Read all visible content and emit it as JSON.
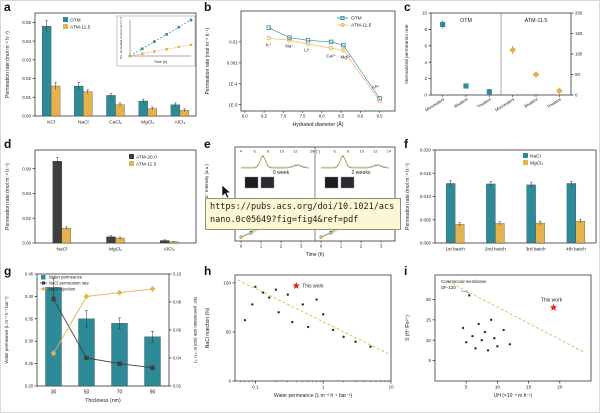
{
  "colors": {
    "teal": "#2d8a99",
    "yellow": "#e3b34f",
    "dark": "#3f3f3f",
    "red": "#d82a1a",
    "dashline": "#d6c567",
    "black": "#1a1a1a"
  },
  "tooltip": {
    "url": "https://pubs.acs.org/doi/10.1021/acsnano.0c05649?fig=fig4&ref=pdf"
  },
  "chart_data": [
    {
      "panel": "a",
      "type": "grouped-bar",
      "ylabel": "Permeation rate (mol m⁻² h⁻¹)",
      "categories": [
        "KCl",
        "NaCl",
        "CaCl₂",
        "MgCl₂",
        "AlCl₃"
      ],
      "series": [
        {
          "name": "OTM",
          "color": "teal",
          "values": [
            0.048,
            0.016,
            0.011,
            0.008,
            0.006
          ],
          "errors": [
            0.003,
            0.002,
            0.001,
            0.001,
            0.001
          ]
        },
        {
          "name": "ATM-11.5",
          "color": "yellow",
          "values": [
            0.016,
            0.013,
            0.006,
            0.004,
            0.003
          ],
          "errors": [
            0.002,
            0.001,
            0.001,
            0.0008,
            0.0008
          ]
        }
      ],
      "ylim": [
        0,
        0.055
      ],
      "yticks": [
        0,
        0.01,
        0.02,
        0.03,
        0.04,
        0.05
      ],
      "ytick_decimals": 2,
      "inset": {
        "xlabel": "Time (h)",
        "ylabel": "Na⁺ permeated amount (mol m⁻²)",
        "xmax": 5,
        "ymax": 0.08,
        "series": [
          {
            "name": "OTM",
            "color": "teal",
            "x": [
              0,
              1,
              2,
              3,
              4,
              5
            ],
            "y": [
              0,
              0.016,
              0.032,
              0.048,
              0.064,
              0.08
            ]
          },
          {
            "name": "ATM-11.5",
            "color": "yellow",
            "x": [
              0,
              1,
              2,
              3,
              4,
              5
            ],
            "y": [
              0,
              0.005,
              0.01,
              0.015,
              0.02,
              0.025
            ]
          }
        ]
      }
    },
    {
      "panel": "b",
      "type": "scatter-logy",
      "xlabel": "Hydrated diameter (Å)",
      "ylabel": "Permeation rate (mol m⁻² h⁻¹)",
      "xlim": [
        5.9,
        9.9
      ],
      "xticks": [
        6.0,
        6.5,
        7.0,
        7.5,
        8.0,
        8.5,
        9.0,
        9.5
      ],
      "ylim": [
        5e-06,
        0.3
      ],
      "yticks": [
        {
          "v": 0.01,
          "label": "0.01"
        },
        {
          "v": 0.001,
          "label": "0.001"
        },
        {
          "v": 0.0001,
          "label": "1E-4"
        },
        {
          "v": 1e-05,
          "label": "1E-5"
        }
      ],
      "series": [
        {
          "name": "OTM",
          "color": "teal",
          "marker": "square",
          "points": [
            [
              6.62,
              0.048
            ],
            [
              7.16,
              0.016
            ],
            [
              7.64,
              0.012
            ],
            [
              8.24,
              0.01
            ],
            [
              8.56,
              0.007
            ],
            [
              9.5,
              2e-05
            ]
          ]
        },
        {
          "name": "ATM-11.5",
          "color": "yellow",
          "marker": "circle",
          "points": [
            [
              6.62,
              0.015
            ],
            [
              7.16,
              0.012
            ],
            [
              7.64,
              0.008
            ],
            [
              8.24,
              0.005
            ],
            [
              8.56,
              0.004
            ],
            [
              9.5,
              1.5e-05
            ]
          ]
        }
      ],
      "point_labels": [
        {
          "text": "K⁺",
          "x": 6.62,
          "y": 0.006
        },
        {
          "text": "Na⁺",
          "x": 7.16,
          "y": 0.0055
        },
        {
          "text": "Li⁺",
          "x": 7.62,
          "y": 0.0035
        },
        {
          "text": "Ca²⁺",
          "x": 8.24,
          "y": 0.0018
        },
        {
          "text": "Mg²⁺",
          "x": 8.62,
          "y": 0.0016
        },
        {
          "text": "Al³⁺",
          "x": 9.4,
          "y": 6e-05
        }
      ]
    },
    {
      "panel": "c",
      "type": "dual-scatter",
      "ylabel": "Normalized permeation rate",
      "sections": [
        "OTM",
        "ATM-11.5"
      ],
      "categories": [
        "Monovalent",
        "Bivalent",
        "Trivalent",
        "Monovalent",
        "Bivalent",
        "Trivalent"
      ],
      "ylim_left": [
        0,
        10
      ],
      "yticks_left": [
        0,
        2,
        4,
        6,
        8,
        10
      ],
      "ylim_right": [
        0,
        200
      ],
      "yticks_right": [
        0,
        50,
        100,
        150,
        200
      ],
      "points": [
        {
          "cat": 0,
          "value": 8.6,
          "err": 0.5,
          "axis": "left",
          "color": "teal",
          "marker": "square"
        },
        {
          "cat": 1,
          "value": 1.1,
          "err": 0.2,
          "axis": "left",
          "color": "teal",
          "marker": "square"
        },
        {
          "cat": 2,
          "value": 0.4,
          "err": 0.1,
          "axis": "left",
          "color": "teal",
          "marker": "square"
        },
        {
          "cat": 3,
          "value": 110,
          "err": 10,
          "axis": "right",
          "color": "yellow",
          "marker": "diamond"
        },
        {
          "cat": 4,
          "value": 50,
          "err": 6,
          "axis": "right",
          "color": "yellow",
          "marker": "diamond"
        },
        {
          "cat": 5,
          "value": 10,
          "err": 3,
          "axis": "right",
          "color": "yellow",
          "marker": "diamond"
        }
      ]
    },
    {
      "panel": "d",
      "type": "grouped-bar",
      "ylabel": "Permeation rate (mol m⁻² h⁻¹)",
      "categories": [
        "NaCl",
        "MgCl₂",
        "AlCl₃"
      ],
      "series": [
        {
          "name": "ATM-20.0",
          "color": "dark",
          "values": [
            0.066,
            0.005,
            0.002
          ],
          "errors": [
            0.003,
            0.001,
            0.0005
          ]
        },
        {
          "name": "ATM-11.5",
          "color": "yellow",
          "values": [
            0.012,
            0.004,
            0.001
          ],
          "errors": [
            0.001,
            0.0008,
            0.0003
          ]
        }
      ],
      "ylim": [
        0,
        0.075
      ],
      "yticks": [
        0,
        0.02,
        0.04,
        0.06
      ],
      "ytick_decimals": 2
    },
    {
      "panel": "e",
      "type": "stability",
      "ylabel": "Permeated Na⁺ Intensity (a.u.)",
      "xlabel": "Time (h)",
      "top_axis_label": "2θ (°)",
      "top_ticks": [
        4,
        6,
        8,
        10,
        12,
        14
      ],
      "sections": [
        "0 week",
        "2 weeks"
      ],
      "xticks": [
        0,
        1,
        2,
        3
      ],
      "xrd": {
        "centers": [
          7.2,
          12.3
        ],
        "heights": [
          1,
          0.22
        ],
        "widths": [
          0.55,
          0.8
        ]
      },
      "series": [
        {
          "color": "teal",
          "x": [
            0,
            0.5,
            1,
            1.5,
            2,
            2.5,
            3
          ],
          "y": [
            0.02,
            0.13,
            0.27,
            0.4,
            0.52,
            0.63,
            0.72
          ]
        },
        {
          "color": "yellow",
          "x": [
            0,
            0.5,
            1,
            1.5,
            2,
            2.5,
            3
          ],
          "y": [
            0.01,
            0.1,
            0.22,
            0.34,
            0.46,
            0.57,
            0.66
          ]
        }
      ]
    },
    {
      "panel": "f",
      "type": "grouped-bar",
      "ylabel": "Permeation rate (mol m⁻² h⁻¹)",
      "categories": [
        "1st batch",
        "2nd batch",
        "3rd batch",
        "4th batch"
      ],
      "series": [
        {
          "name": "NaCl",
          "color": "teal",
          "values": [
            0.0128,
            0.0127,
            0.0125,
            0.0128
          ],
          "errors": [
            0.0006,
            0.0005,
            0.0006,
            0.0005
          ]
        },
        {
          "name": "MgCl₂",
          "color": "yellow",
          "values": [
            0.004,
            0.0042,
            0.0043,
            0.0047
          ],
          "errors": [
            0.0004,
            0.0004,
            0.0004,
            0.0004
          ]
        }
      ],
      "ylim": [
        0,
        0.02
      ],
      "yticks": [
        0,
        0.005,
        0.01,
        0.015,
        0.02
      ],
      "ytick_decimals": 3
    },
    {
      "panel": "g",
      "type": "combo",
      "xlabel": "Thickness (nm)",
      "ylabel_left": "Water permeance (L m⁻² h⁻¹ bar⁻¹)",
      "ylabel_right": "Na⁺ permeation rate (mol m⁻² h⁻¹)",
      "categories": [
        "30",
        "50",
        "70",
        "90"
      ],
      "bars": {
        "name": "Water permeance",
        "color": "teal",
        "values": [
          0.42,
          0.35,
          0.34,
          0.31
        ],
        "errors": [
          0.02,
          0.018,
          0.012,
          0.012
        ]
      },
      "ylim_left": [
        0.2,
        0.45
      ],
      "yticks_left": [
        0.2,
        0.25,
        0.3,
        0.35,
        0.4,
        0.45
      ],
      "ylim_right": [
        0.02,
        0.1
      ],
      "yticks_right": [
        0.02,
        0.04,
        0.06,
        0.08,
        0.1
      ],
      "lines": [
        {
          "name": "NaCl permeation rate",
          "color": "dark",
          "marker": "square",
          "axis": "right",
          "values": [
            0.082,
            0.04,
            0.036,
            0.033
          ]
        },
        {
          "name": "NaCl rejection",
          "color": "yellow",
          "marker": "diamond",
          "axis": "hidden",
          "hidden_ylim": [
            88,
            100
          ],
          "values": [
            91.5,
            97.6,
            98.0,
            98.4
          ]
        }
      ]
    },
    {
      "panel": "h",
      "type": "scatter-logx",
      "xlabel": "Water permeance (L m⁻² h⁻¹ bar⁻¹)",
      "ylabel": "NaCl rejection (%)",
      "xlim": [
        0.05,
        10
      ],
      "xticks": [
        0.1,
        1,
        10
      ],
      "ylim": [
        0,
        108
      ],
      "yticks": [
        0,
        50,
        100
      ],
      "points": [
        [
          0.07,
          62
        ],
        [
          0.09,
          78
        ],
        [
          0.1,
          96
        ],
        [
          0.13,
          90
        ],
        [
          0.16,
          85
        ],
        [
          0.2,
          93
        ],
        [
          0.22,
          70
        ],
        [
          0.3,
          88
        ],
        [
          0.35,
          60
        ],
        [
          0.5,
          78
        ],
        [
          0.6,
          55
        ],
        [
          0.8,
          83
        ],
        [
          1,
          68
        ],
        [
          1.4,
          52
        ],
        [
          2,
          45
        ],
        [
          3,
          40
        ],
        [
          5,
          35
        ]
      ],
      "star": {
        "x": 0.4,
        "y": 97,
        "label": "This work"
      },
      "tradeoff": [
        [
          0.055,
          103
        ],
        [
          9,
          28
        ]
      ]
    },
    {
      "panel": "i",
      "type": "scatter-lin",
      "xlabel": "UH (×10⁻³ m h⁻¹)",
      "ylabel": "S (H⁺/Fe²⁺)",
      "xlim": [
        0,
        25
      ],
      "xticks": [
        5,
        10,
        15,
        20
      ],
      "ylim": [
        0,
        26
      ],
      "yticks": [
        5,
        10,
        15,
        20
      ],
      "points": [
        [
          4.5,
          13
        ],
        [
          5,
          9.5
        ],
        [
          5.5,
          21
        ],
        [
          6,
          11
        ],
        [
          6.5,
          8
        ],
        [
          7,
          14
        ],
        [
          7.5,
          10
        ],
        [
          8,
          12
        ],
        [
          8.5,
          7.5
        ],
        [
          9,
          15
        ],
        [
          9.5,
          10.5
        ],
        [
          10,
          8.5
        ],
        [
          11,
          12.5
        ],
        [
          12,
          9
        ]
      ],
      "annotation": {
        "lines": [
          "Commercial membrane",
          "DF-120"
        ],
        "target": [
          5.5,
          21
        ]
      },
      "star": {
        "x": 19,
        "y": 18,
        "label": "This work"
      },
      "tradeoff": [
        [
          2,
          24.5
        ],
        [
          24,
          7
        ]
      ]
    }
  ]
}
